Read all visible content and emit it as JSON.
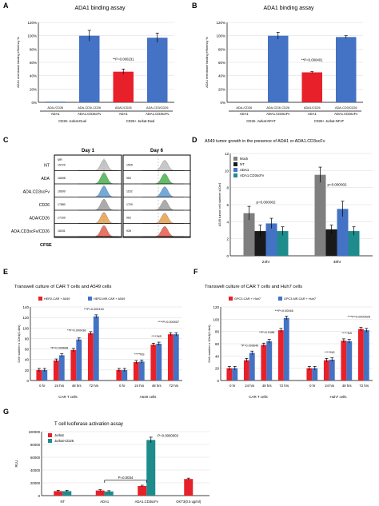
{
  "panels": [
    {
      "letter": "A",
      "title": "ADA1 binding assay"
    },
    {
      "letter": "B",
      "title": "ADA1 binding assay"
    },
    {
      "letter": "C",
      "title": ""
    },
    {
      "letter": "D",
      "title": "A549 tumor growth in the presence of ADA1 or ADA1.CD3scFv"
    },
    {
      "letter": "E",
      "title": "Transwell culture of CAR T cells and A549 cells"
    },
    {
      "letter": "F",
      "title": "Transwell culture of CAR T cells and Huh7 cells"
    },
    {
      "letter": "G",
      "title": "T cell luciferase activation assay"
    }
  ],
  "colors": {
    "red": "#e8202a",
    "blue": "#4472c4",
    "grey": "#7f7f7f",
    "black": "#1a1a1a",
    "teal": "#1e8c8c",
    "green": "#46b34b",
    "orange": "#f07b4a"
  },
  "chart_data": [
    {
      "panel": "A",
      "type": "bar",
      "title": "ADA1 binding assay",
      "ylabel": "ADA1 membrane binding efficiency %",
      "yticks": [
        "0%",
        "20%",
        "40%",
        "60%",
        "80%",
        "100%",
        "120%"
      ],
      "ylim": [
        0,
        120
      ],
      "categories": [
        "ADA-/CD26",
        "ADA-CD3/-CD26",
        "ADA1/CD26",
        "ADA-CD3/CD26"
      ],
      "subcategories": [
        "ADA1",
        "ADA1.CD3scFv",
        "ADA1",
        "ADA1.CD3scFv"
      ],
      "groups": [
        "CD26- Jurkat-Dual",
        "CD26+ Jurkat-Dual"
      ],
      "values": [
        1,
        100,
        46,
        97
      ],
      "errors": [
        0,
        8,
        4,
        7
      ],
      "bar_colors": [
        "#4472c4",
        "#4472c4",
        "#e8202a",
        "#4472c4"
      ],
      "annotation": "**P=0.000231"
    },
    {
      "panel": "B",
      "type": "bar",
      "title": "ADA1 binding assay",
      "ylabel": "ADA1 membrane binding efficiency %",
      "yticks": [
        "0%",
        "20%",
        "40%",
        "60%",
        "80%",
        "100%",
        "120%"
      ],
      "ylim": [
        0,
        120
      ],
      "categories": [
        "ADA-/CD26",
        "ADA-CD3/-CD26",
        "ADA1/CD26",
        "ADA-CD3/CD26"
      ],
      "subcategories": [
        "ADA1",
        "ADA1.CD3scFv",
        "ADA1",
        "ADA1.CD3scFv"
      ],
      "groups": [
        "CD26- Jurkat-NFAT",
        "CD26+ Jurkat-NFAT"
      ],
      "values": [
        0,
        100,
        45,
        98
      ],
      "errors": [
        0,
        5,
        1,
        2
      ],
      "bar_colors": [
        "#4472c4",
        "#4472c4",
        "#e8202a",
        "#4472c4"
      ],
      "annotation": "**P=0.000401"
    },
    {
      "panel": "C",
      "type": "histogram-stack",
      "columns": [
        "Day 1",
        "Day 6"
      ],
      "mfi_label": "MFI",
      "rows": [
        {
          "label": "NT",
          "day1_mfi": "15729",
          "day6_mfi": "1505"
        },
        {
          "label": "ADA",
          "day1_mfi": "16698",
          "day6_mfi": "983"
        },
        {
          "label": "ADA.CD3scFv",
          "day1_mfi": "16699",
          "day6_mfi": "1162"
        },
        {
          "label": "CD26",
          "day1_mfi": "17880",
          "day6_mfi": "1700"
        },
        {
          "label": "ADA/CD26",
          "day1_mfi": "17169",
          "day6_mfi": "962"
        },
        {
          "label": "ADA.CD3scFv/CD26",
          "day1_mfi": "16031",
          "day6_mfi": "928"
        }
      ],
      "xlabel": "CFSE"
    },
    {
      "panel": "D",
      "type": "bar",
      "title": "A549 tumor growth in the presence of ADA1 or ADA1.CD3scFv",
      "ylabel": "A549 tumor cell number x10e4",
      "yticks": [
        "0",
        "2",
        "4",
        "6",
        "8",
        "10",
        "12"
      ],
      "ylim": [
        0,
        12
      ],
      "categories": [
        "24hr",
        "48hr"
      ],
      "series": [
        {
          "name": "Mock",
          "color": "#7f7f7f",
          "values": [
            5.0,
            9.5
          ],
          "errors": [
            0.8,
            0.9
          ]
        },
        {
          "name": "NT",
          "color": "#1a1a1a",
          "values": [
            2.9,
            3.1
          ],
          "errors": [
            0.7,
            0.5
          ]
        },
        {
          "name": "ADA1",
          "color": "#4472c4",
          "values": [
            3.8,
            5.5
          ],
          "errors": [
            0.6,
            0.9
          ]
        },
        {
          "name": "ADA1.CD3scFv",
          "color": "#1e8c8c",
          "values": [
            2.9,
            2.9
          ],
          "errors": [
            0.5,
            0.5
          ]
        }
      ],
      "annotations": [
        "p=0.000002",
        "p=0.000002"
      ]
    },
    {
      "panel": "E",
      "type": "bar",
      "title": "Transwell culture of CAR T cells and A549 cells",
      "ylabel": "Cell number x 10e4(0.4ml)",
      "yticks": [
        "0",
        "20",
        "40",
        "60",
        "80",
        "100",
        "120",
        "140"
      ],
      "ylim": [
        0,
        140
      ],
      "categories": [
        "0 hr",
        "24 hrs",
        "48 hrs",
        "72 hrs",
        "0 hr",
        "24 hrs",
        "48 hrs",
        "72 hrs"
      ],
      "groups": [
        "CAR T cells",
        "A549 cells"
      ],
      "series": [
        {
          "name": "HER2-CAR + A549",
          "color": "#e8202a",
          "values": [
            20,
            38,
            58,
            90,
            20,
            35,
            68,
            88
          ]
        },
        {
          "name": "HER2-MR.CAR + A549",
          "color": "#4472c4",
          "values": [
            20,
            48,
            78,
            122,
            20,
            36,
            70,
            88
          ]
        }
      ],
      "annotations": [
        "*P=0.000698",
        "**P=0.000438",
        "***P=0.000194",
        "****P=0.000007",
        "*****NS",
        "*****NS"
      ]
    },
    {
      "panel": "F",
      "type": "bar",
      "title": "Transwell culture of CAR T cells and Huh7 cells",
      "ylabel": "Cell number x 10e4(0.4ml)",
      "yticks": [
        "0",
        "20",
        "40",
        "60",
        "80",
        "100",
        "120"
      ],
      "ylim": [
        0,
        120
      ],
      "categories": [
        "0 hr",
        "24 hrs",
        "48 hrs",
        "72 hrs",
        "0 hr",
        "24 hrs",
        "48 hrs",
        "72 hrs"
      ],
      "groups": [
        "CAR T cells",
        "Huh7 cells"
      ],
      "series": [
        {
          "name": "GPC3-CAR + Huh7",
          "color": "#e8202a",
          "values": [
            20,
            33,
            58,
            82,
            20,
            33,
            65,
            84
          ]
        },
        {
          "name": "GPC3-MR.CAR + Huh7",
          "color": "#4472c4",
          "values": [
            20,
            45,
            64,
            102,
            20,
            34,
            64,
            82
          ]
        }
      ],
      "annotations": [
        "*P=0.000649",
        "**P=0.0188",
        "***P=0.00046",
        "****P=0.0000025",
        "*****NS",
        "*****NS"
      ]
    },
    {
      "panel": "G",
      "type": "bar",
      "title": "T cell luciferase activation assay",
      "ylabel": "RLU",
      "yticks": [
        "0",
        "20000",
        "40000",
        "60000",
        "80000",
        "100000"
      ],
      "ylim": [
        0,
        100000
      ],
      "categories": [
        "NT",
        "ADA1",
        "ADA1.CD3scFv",
        "OKT3(0.5 ug/ml)"
      ],
      "series": [
        {
          "name": "Jurkat",
          "color": "#e8202a",
          "values": [
            7000,
            8000,
            15000,
            26000
          ]
        },
        {
          "name": "Jurkat-CD26",
          "color": "#1e8c8c",
          "values": [
            7000,
            6500,
            87000,
            null
          ]
        }
      ],
      "annotations": [
        "P=0.0000003",
        "P=0.0034"
      ]
    }
  ]
}
